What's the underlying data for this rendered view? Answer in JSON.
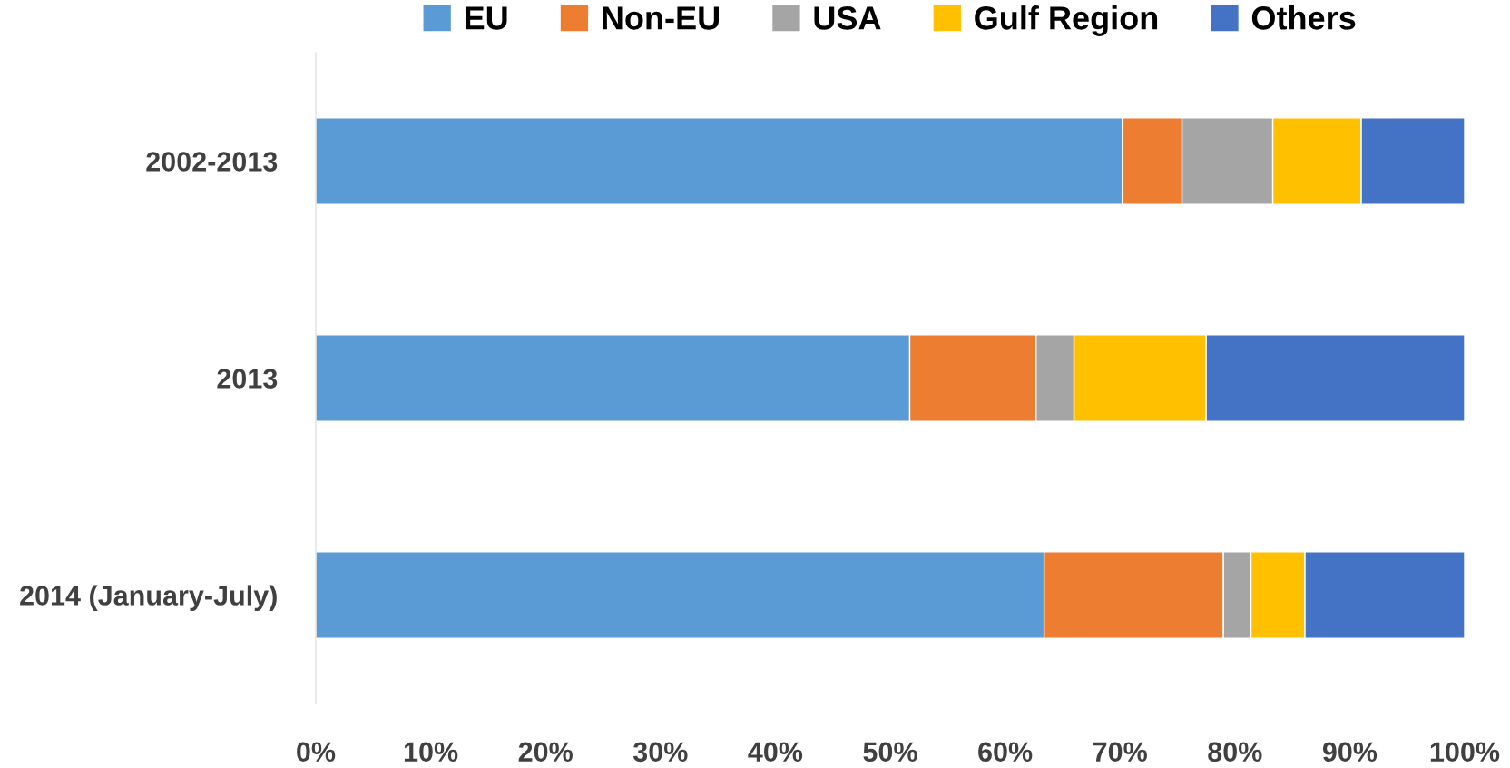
{
  "chart_data": {
    "type": "bar",
    "orientation": "horizontal",
    "stacked": true,
    "legend": "top",
    "grid": false,
    "categories": [
      "2002-2013",
      "2013",
      "2014 (January-July)"
    ],
    "series": [
      {
        "name": "EU",
        "color": "#5b9bd5",
        "values": [
          70.2,
          51.7,
          63.4
        ]
      },
      {
        "name": "Non-EU",
        "color": "#ed7d31",
        "values": [
          5.2,
          11.0,
          15.6
        ]
      },
      {
        "name": "USA",
        "color": "#a5a5a5",
        "values": [
          7.9,
          3.3,
          2.4
        ]
      },
      {
        "name": "Gulf Region",
        "color": "#ffc000",
        "values": [
          7.7,
          11.5,
          4.7
        ]
      },
      {
        "name": "Others",
        "color": "#4472c4",
        "values": [
          9.0,
          22.5,
          13.9
        ]
      }
    ],
    "xlim": [
      0,
      100
    ],
    "xticks": [
      {
        "value": 0,
        "label": "0%"
      },
      {
        "value": 10,
        "label": "10%"
      },
      {
        "value": 20,
        "label": "20%"
      },
      {
        "value": 30,
        "label": "30%"
      },
      {
        "value": 40,
        "label": "40%"
      },
      {
        "value": 50,
        "label": "50%"
      },
      {
        "value": 60,
        "label": "60%"
      },
      {
        "value": 70,
        "label": "70%"
      },
      {
        "value": 80,
        "label": "80%"
      },
      {
        "value": 90,
        "label": "90%"
      },
      {
        "value": 100,
        "label": "100%"
      }
    ]
  }
}
